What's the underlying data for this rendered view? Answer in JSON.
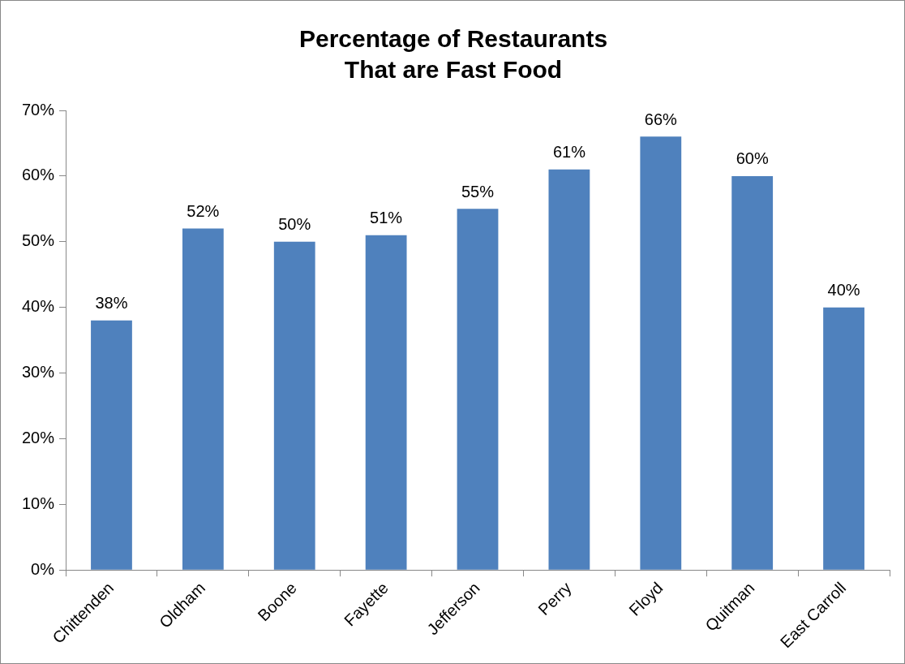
{
  "chart_data": {
    "type": "bar",
    "title": "Percentage of Restaurants\nThat are Fast Food",
    "categories": [
      "Chittenden",
      "Oldham",
      "Boone",
      "Fayette",
      "Jefferson",
      "Perry",
      "Floyd",
      "Quitman",
      "East Carroll"
    ],
    "values": [
      38,
      52,
      50,
      51,
      55,
      61,
      66,
      60,
      40
    ],
    "value_labels": [
      "38%",
      "52%",
      "50%",
      "51%",
      "55%",
      "61%",
      "66%",
      "60%",
      "40%"
    ],
    "color": "#4f81bd",
    "ylim": [
      0,
      70
    ],
    "yticks": [
      {
        "value": 0,
        "label": "0%"
      },
      {
        "value": 10,
        "label": "10%"
      },
      {
        "value": 20,
        "label": "20%"
      },
      {
        "value": 30,
        "label": "30%"
      },
      {
        "value": 40,
        "label": "40%"
      },
      {
        "value": 50,
        "label": "50%"
      },
      {
        "value": 60,
        "label": "60%"
      },
      {
        "value": 70,
        "label": "70%"
      }
    ],
    "grid": false,
    "legend": false
  }
}
